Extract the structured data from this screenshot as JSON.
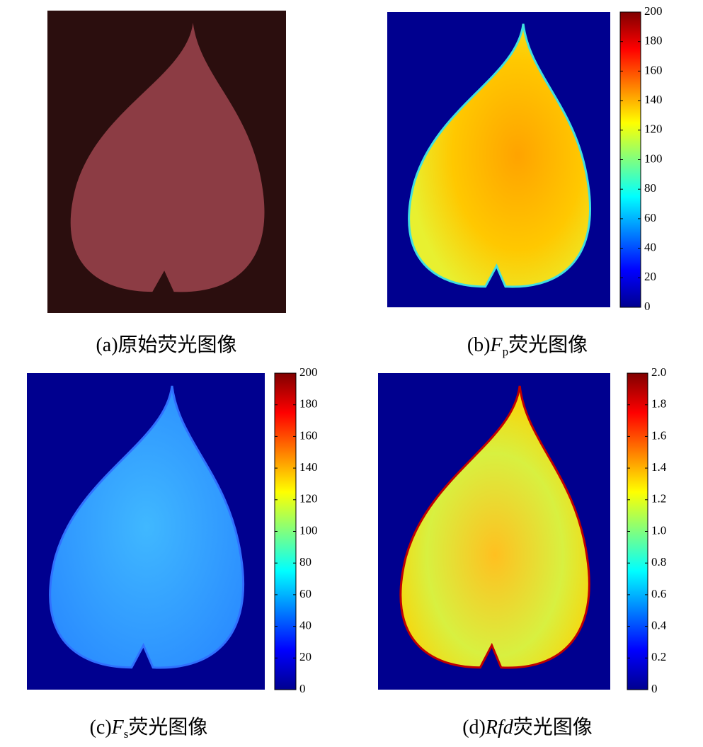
{
  "panels": [
    {
      "caption": {
        "label": "(a)",
        "text": "原始荧光图像"
      }
    },
    {
      "caption": {
        "label": "(b)",
        "symbol": "F",
        "subscript": "p",
        "text": "荧光图像"
      },
      "colorbar": {
        "lim": [
          0,
          200
        ],
        "ticks": [
          0,
          20,
          40,
          60,
          80,
          100,
          120,
          140,
          160,
          180,
          200
        ]
      }
    },
    {
      "caption": {
        "label": "(c)",
        "symbol": "F",
        "subscript": "s",
        "text": "荧光图像"
      },
      "colorbar": {
        "lim": [
          0,
          200
        ],
        "ticks": [
          0,
          20,
          40,
          60,
          80,
          100,
          120,
          140,
          160,
          180,
          200
        ]
      }
    },
    {
      "caption": {
        "label": "(d)",
        "symbol": "Rfd",
        "text": "荧光图像"
      },
      "colorbar": {
        "lim": [
          0,
          2
        ],
        "ticks": [
          0,
          0.2,
          0.4,
          0.6,
          0.8,
          {
            "value": 1,
            "label": "1.0"
          },
          1.2,
          1.4,
          1.6,
          1.8,
          {
            "value": 2,
            "label": "2.0"
          }
        ]
      }
    }
  ]
}
